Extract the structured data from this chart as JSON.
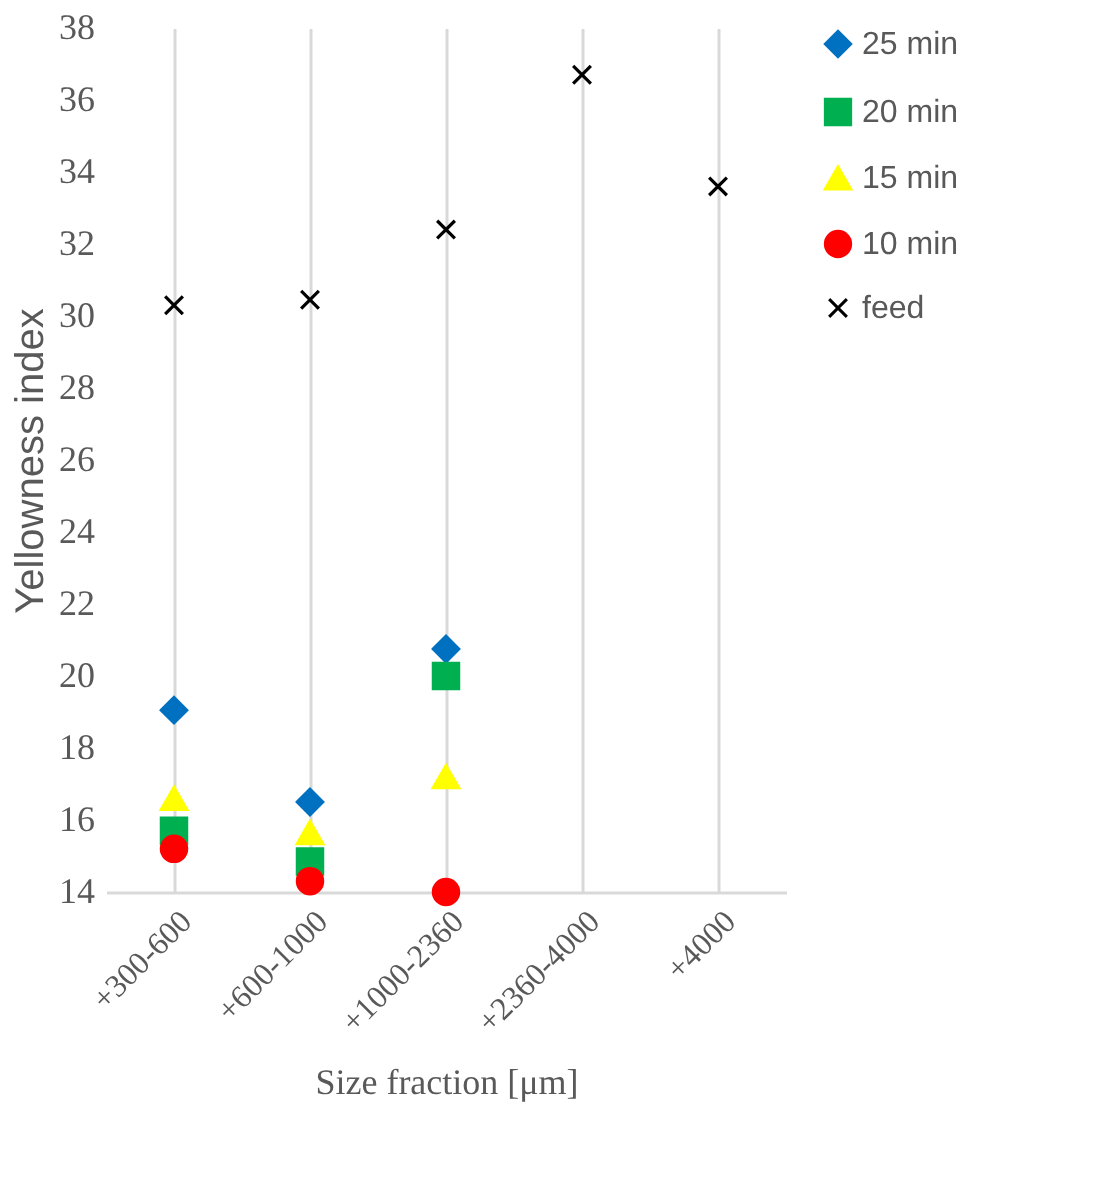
{
  "chart_data": {
    "type": "scatter",
    "xlabel": "Size fraction [μm]",
    "ylabel": "Yellowness index",
    "categories": [
      "+300-600",
      "+600-1000",
      "+1000-2360",
      "+2360-4000",
      "+4000"
    ],
    "series": [
      {
        "name": "25 min",
        "color": "#0070c0",
        "marker": "diamond",
        "values": [
          19.05,
          16.5,
          20.75,
          null,
          null
        ]
      },
      {
        "name": "20 min",
        "color": "#00b050",
        "marker": "square",
        "values": [
          15.7,
          14.85,
          20.0,
          null,
          null
        ]
      },
      {
        "name": "15 min",
        "color": "#ffff00",
        "marker": "triangle",
        "values": [
          16.6,
          15.65,
          17.2,
          null,
          null
        ]
      },
      {
        "name": "10 min",
        "color": "#ff0000",
        "marker": "circle",
        "values": [
          15.2,
          14.3,
          14.0,
          null,
          null
        ]
      },
      {
        "name": "feed",
        "color": "#000000",
        "marker": "cross",
        "values": [
          30.3,
          30.45,
          32.4,
          36.7,
          33.6
        ]
      }
    ],
    "ylim": [
      14,
      38
    ],
    "yticks": [
      14,
      16,
      18,
      20,
      22,
      24,
      26,
      28,
      30,
      32,
      34,
      36,
      38
    ],
    "grid": "x",
    "legend": "right"
  }
}
